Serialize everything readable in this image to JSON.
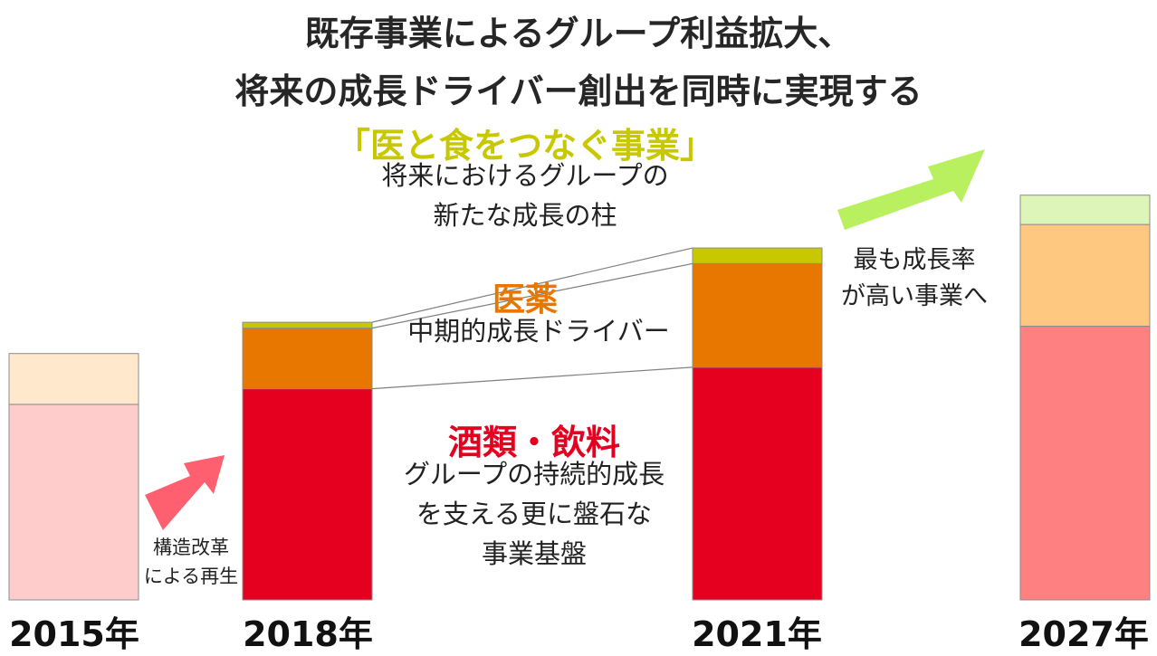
{
  "header": {
    "title_line1": "既存事業によるグループ利益拡大、",
    "title_line2": "将来の成長ドライバー創出を同時に実現する"
  },
  "segments": {
    "food_medical": {
      "title": "「医と食をつなぐ事業」",
      "desc1": "将来におけるグループの",
      "desc2": "新たな成長の柱",
      "color": "#C8C800"
    },
    "pharma": {
      "title": "医薬",
      "desc": "中期的成長ドライバー",
      "color": "#E87700"
    },
    "beverage": {
      "title": "酒類・飲料",
      "desc1": "グループの持続的成長",
      "desc2": "を支える更に盤石な",
      "desc3": "事業基盤",
      "color": "#E60020"
    }
  },
  "annotations": {
    "restructure_line1": "構造改革",
    "restructure_line2": "による再生",
    "growth_line1": "最も成長率",
    "growth_line2": "が高い事業へ"
  },
  "colors": {
    "beverage_2015": "#FFCCCC",
    "pharma_2015": "#FFE8CC",
    "beverage_2027": "#FF8080",
    "pharma_2027": "#FFC880",
    "food_2027": "#DDF5B8",
    "arrow_red": "#FF6070",
    "arrow_green": "#B8F060"
  },
  "chart_data": {
    "type": "bar",
    "stacked": true,
    "categories": [
      "2015年",
      "2018年",
      "2021年",
      "2027年"
    ],
    "series": [
      {
        "values": [
          100,
          108,
          119,
          140
        ]
      },
      {
        "values": [
          26,
          31,
          53,
          52
        ]
      },
      {
        "values": [
          0,
          3,
          8,
          15
        ]
      }
    ],
    "ylim": [
      0,
      205
    ],
    "grid": false,
    "legend": "none"
  }
}
